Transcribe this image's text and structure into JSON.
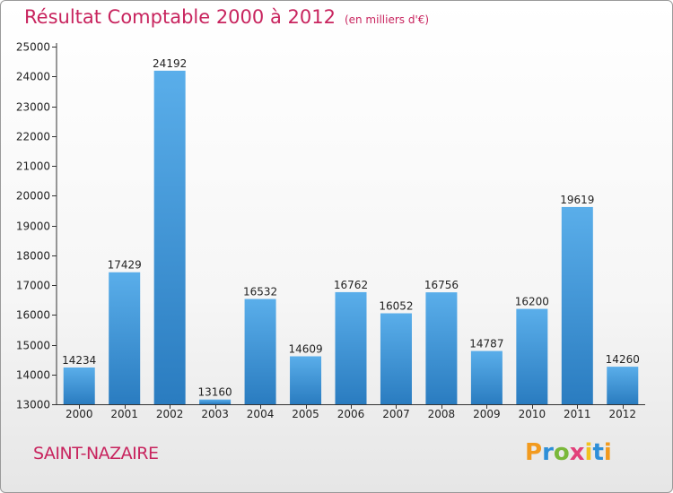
{
  "header": {
    "title": "Résultat Comptable 2000 à 2012",
    "subtitle": "(en milliers d'€)"
  },
  "footer": {
    "city": "SAINT-NAZAIRE",
    "logo": "Proxiti"
  },
  "colors": {
    "title": "#c8245e",
    "bar_top": "#5aaeea",
    "bar_bottom": "#2a7cc0",
    "logo_letters": [
      "#f29a1e",
      "#2e8fd8",
      "#7ab83a",
      "#e2407a",
      "#f2c21e",
      "#2e8fd8"
    ]
  },
  "chart_data": {
    "type": "bar",
    "title": "Résultat Comptable 2000 à 2012",
    "subtitle": "(en milliers d'€)",
    "xlabel": "",
    "ylabel": "",
    "categories": [
      "2000",
      "2001",
      "2002",
      "2003",
      "2004",
      "2005",
      "2006",
      "2007",
      "2008",
      "2009",
      "2010",
      "2011",
      "2012"
    ],
    "values": [
      14234,
      17429,
      24192,
      13160,
      16532,
      14609,
      16762,
      16052,
      16756,
      14787,
      16200,
      19619,
      14260
    ],
    "ylim": [
      13000,
      25000
    ],
    "yticks": [
      13000,
      14000,
      15000,
      16000,
      17000,
      18000,
      19000,
      20000,
      21000,
      22000,
      23000,
      24000,
      25000
    ],
    "grid": false,
    "legend": "none",
    "data_labels": true
  }
}
